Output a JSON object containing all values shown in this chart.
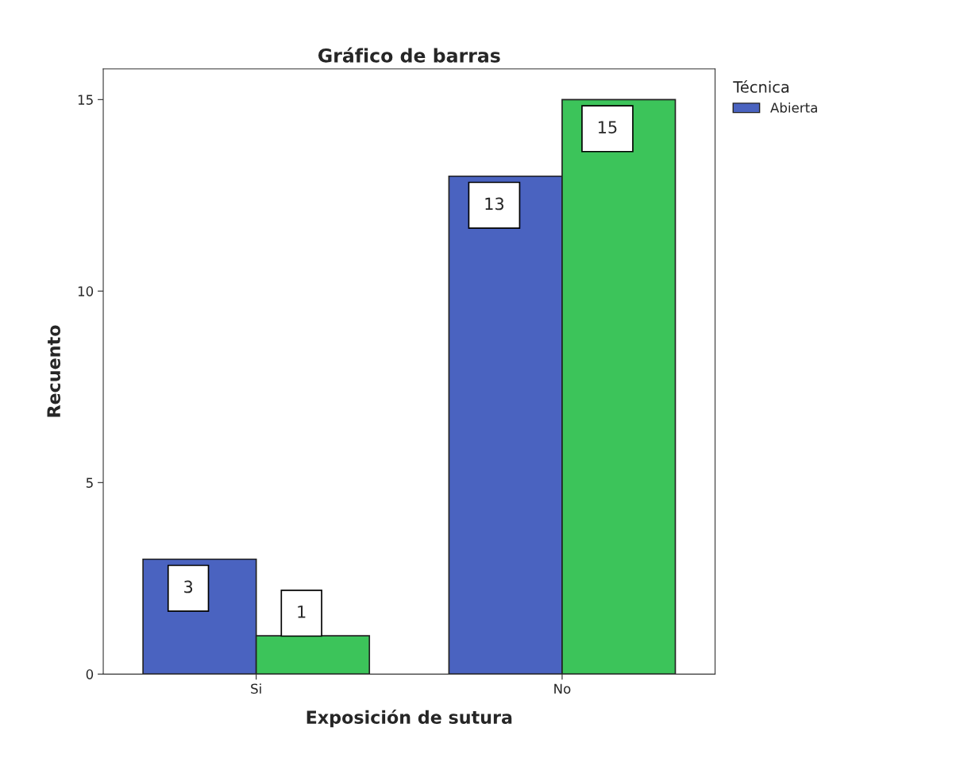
{
  "chart_data": {
    "type": "bar",
    "title": "Gráfico de barras",
    "xlabel": "Exposición de sutura",
    "ylabel": "Recuento",
    "legend_title": "Técnica",
    "categories": [
      "Si",
      "No"
    ],
    "series": [
      {
        "name": "Abierta",
        "color": "#4a63c0",
        "values": [
          3,
          13
        ]
      },
      {
        "color": "#3cc45a",
        "values": [
          1,
          15
        ]
      }
    ],
    "ylim": [
      0,
      15.8
    ],
    "yticks": [
      0,
      5,
      10,
      15
    ],
    "grid": false,
    "legend": "right",
    "data_labels": true
  }
}
